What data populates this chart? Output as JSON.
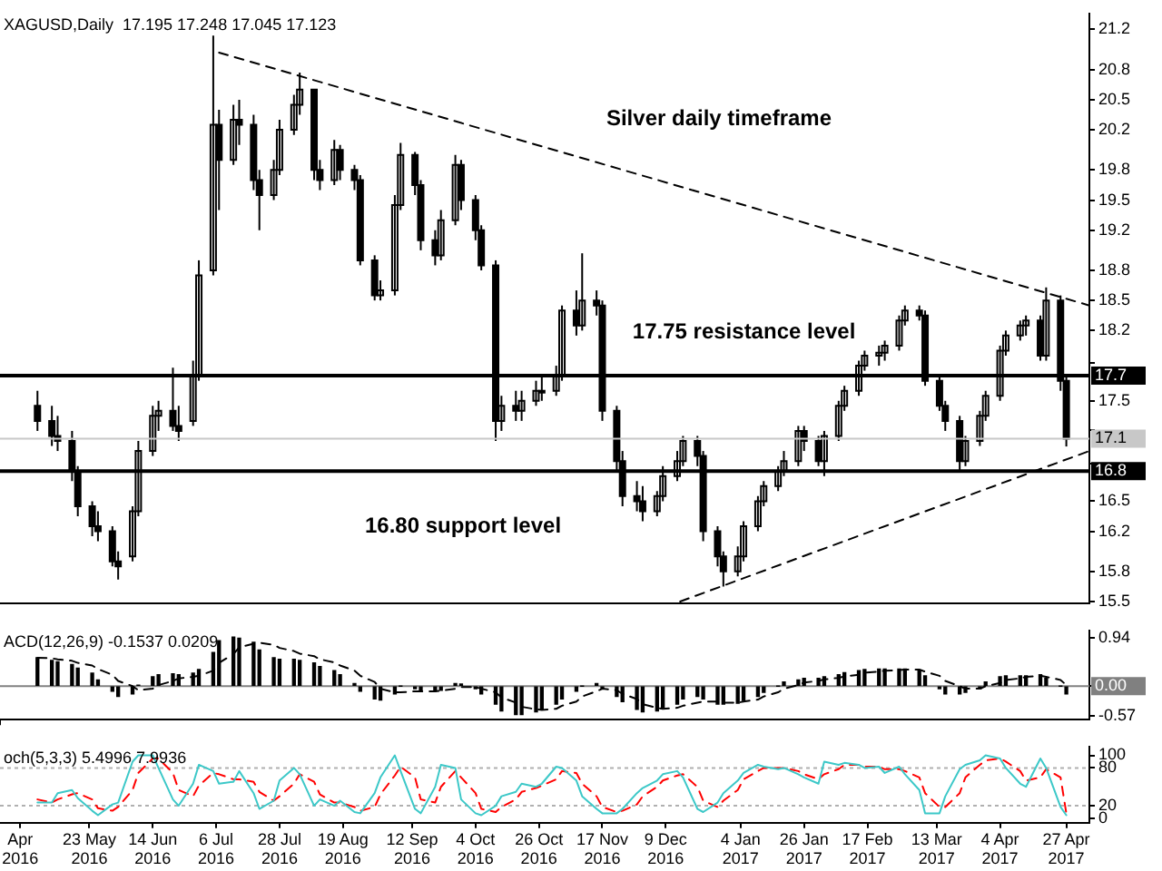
{
  "chart_data": [
    {
      "type": "candlestick",
      "color": "#000000",
      "x": [
        "2016-05-05",
        "2016-05-10",
        "2016-05-12",
        "2016-05-17",
        "2016-05-19",
        "2016-05-24",
        "2016-05-26",
        "2016-05-31",
        "2016-06-02",
        "2016-06-07",
        "2016-06-09",
        "2016-06-14",
        "2016-06-16",
        "2016-06-21",
        "2016-06-23",
        "2016-06-28",
        "2016-06-30",
        "2016-07-05",
        "2016-07-07",
        "2016-07-12",
        "2016-07-14",
        "2016-07-19",
        "2016-07-21",
        "2016-07-26",
        "2016-07-28",
        "2016-08-02",
        "2016-08-04",
        "2016-08-09",
        "2016-08-11",
        "2016-08-16",
        "2016-08-18",
        "2016-08-23",
        "2016-08-25",
        "2016-08-30",
        "2016-09-01",
        "2016-09-06",
        "2016-09-08",
        "2016-09-13",
        "2016-09-15",
        "2016-09-20",
        "2016-09-22",
        "2016-09-27",
        "2016-09-29",
        "2016-10-04",
        "2016-10-06",
        "2016-10-11",
        "2016-10-13",
        "2016-10-18",
        "2016-10-20",
        "2016-10-25",
        "2016-10-27",
        "2016-11-01",
        "2016-11-03",
        "2016-11-08",
        "2016-11-10",
        "2016-11-15",
        "2016-11-17",
        "2016-11-22",
        "2016-11-24",
        "2016-11-29",
        "2016-12-01",
        "2016-12-06",
        "2016-12-08",
        "2016-12-13",
        "2016-12-15",
        "2016-12-20",
        "2016-12-22",
        "2016-12-27",
        "2016-12-29",
        "2017-01-03",
        "2017-01-05",
        "2017-01-10",
        "2017-01-12",
        "2017-01-17",
        "2017-01-19",
        "2017-01-24",
        "2017-01-26",
        "2017-01-31",
        "2017-02-02",
        "2017-02-07",
        "2017-02-09",
        "2017-02-14",
        "2017-02-16",
        "2017-02-21",
        "2017-02-23",
        "2017-02-28",
        "2017-03-02",
        "2017-03-07",
        "2017-03-09",
        "2017-03-14",
        "2017-03-16",
        "2017-03-21",
        "2017-03-23",
        "2017-03-28",
        "2017-03-30",
        "2017-04-04",
        "2017-04-06",
        "2017-04-11",
        "2017-04-13",
        "2017-04-18",
        "2017-04-20",
        "2017-04-25",
        "2017-04-27"
      ],
      "ohlc": [
        [
          17.45,
          17.6,
          17.2,
          17.3
        ],
        [
          17.3,
          17.45,
          17.05,
          17.15
        ],
        [
          17.15,
          17.35,
          17.0,
          17.1
        ],
        [
          17.1,
          17.2,
          16.7,
          16.8
        ],
        [
          16.8,
          16.85,
          16.35,
          16.45
        ],
        [
          16.45,
          16.5,
          16.15,
          16.25
        ],
        [
          16.25,
          16.4,
          16.1,
          16.2
        ],
        [
          16.2,
          16.25,
          15.85,
          15.9
        ],
        [
          15.9,
          16.0,
          15.72,
          15.85
        ],
        [
          15.95,
          16.45,
          15.9,
          16.4
        ],
        [
          16.4,
          17.1,
          16.35,
          17.0
        ],
        [
          17.0,
          17.45,
          16.95,
          17.35
        ],
        [
          17.35,
          17.5,
          17.2,
          17.4
        ],
        [
          17.4,
          17.83,
          17.2,
          17.25
        ],
        [
          17.25,
          17.45,
          17.1,
          17.2
        ],
        [
          17.3,
          17.9,
          17.25,
          17.75
        ],
        [
          17.75,
          18.9,
          17.7,
          18.75
        ],
        [
          18.8,
          21.14,
          18.75,
          20.25
        ],
        [
          20.25,
          20.4,
          19.4,
          19.9
        ],
        [
          19.9,
          20.45,
          19.85,
          20.3
        ],
        [
          20.3,
          20.5,
          20.05,
          20.25
        ],
        [
          20.25,
          20.35,
          19.6,
          19.7
        ],
        [
          19.7,
          19.8,
          19.2,
          19.55
        ],
        [
          19.55,
          19.9,
          19.5,
          19.8
        ],
        [
          19.8,
          20.3,
          19.75,
          20.2
        ],
        [
          20.2,
          20.55,
          20.15,
          20.45
        ],
        [
          20.45,
          20.77,
          20.35,
          20.6
        ],
        [
          20.6,
          20.6,
          19.7,
          19.8
        ],
        [
          19.8,
          19.9,
          19.6,
          19.7
        ],
        [
          19.7,
          20.1,
          19.65,
          20.0
        ],
        [
          20.0,
          20.05,
          19.7,
          19.8
        ],
        [
          19.8,
          19.85,
          19.6,
          19.7
        ],
        [
          19.7,
          19.75,
          18.85,
          18.9
        ],
        [
          18.9,
          18.95,
          18.5,
          18.55
        ],
        [
          18.55,
          18.7,
          18.5,
          18.6
        ],
        [
          18.6,
          19.55,
          18.55,
          19.45
        ],
        [
          19.45,
          20.07,
          19.4,
          19.95
        ],
        [
          19.95,
          19.98,
          19.55,
          19.65
        ],
        [
          19.65,
          19.7,
          19.0,
          19.1
        ],
        [
          19.1,
          19.2,
          18.85,
          18.95
        ],
        [
          18.95,
          19.4,
          18.9,
          19.3
        ],
        [
          19.3,
          19.95,
          19.25,
          19.85
        ],
        [
          19.85,
          19.9,
          19.4,
          19.5
        ],
        [
          19.5,
          19.55,
          19.1,
          19.2
        ],
        [
          19.2,
          19.25,
          18.8,
          18.85
        ],
        [
          18.85,
          18.9,
          17.1,
          17.3
        ],
        [
          17.3,
          17.55,
          17.2,
          17.45
        ],
        [
          17.45,
          17.6,
          17.3,
          17.4
        ],
        [
          17.4,
          17.6,
          17.3,
          17.5
        ],
        [
          17.5,
          17.7,
          17.45,
          17.6
        ],
        [
          17.6,
          17.75,
          17.5,
          17.6
        ],
        [
          17.6,
          17.85,
          17.55,
          17.75
        ],
        [
          17.75,
          18.45,
          17.7,
          18.4
        ],
        [
          18.4,
          18.6,
          18.15,
          18.25
        ],
        [
          18.25,
          18.97,
          18.2,
          18.5
        ],
        [
          18.5,
          18.6,
          18.35,
          18.45
        ],
        [
          18.45,
          18.5,
          17.3,
          17.4
        ],
        [
          17.4,
          17.45,
          16.8,
          16.9
        ],
        [
          16.9,
          17.0,
          16.45,
          16.55
        ],
        [
          16.55,
          16.7,
          16.4,
          16.5
        ],
        [
          16.5,
          16.65,
          16.3,
          16.4
        ],
        [
          16.4,
          16.6,
          16.35,
          16.55
        ],
        [
          16.55,
          16.85,
          16.5,
          16.75
        ],
        [
          16.75,
          17.0,
          16.7,
          16.9
        ],
        [
          16.9,
          17.15,
          16.85,
          17.1
        ],
        [
          17.1,
          17.15,
          16.85,
          16.95
        ],
        [
          16.95,
          17.0,
          16.1,
          16.2
        ],
        [
          16.2,
          16.25,
          15.85,
          15.95
        ],
        [
          15.95,
          16.0,
          15.65,
          15.8
        ],
        [
          15.8,
          16.05,
          15.75,
          15.95
        ],
        [
          15.95,
          16.3,
          15.9,
          16.25
        ],
        [
          16.25,
          16.55,
          16.2,
          16.5
        ],
        [
          16.5,
          16.7,
          16.45,
          16.65
        ],
        [
          16.65,
          16.85,
          16.6,
          16.8
        ],
        [
          16.8,
          17.0,
          16.75,
          16.9
        ],
        [
          16.9,
          17.25,
          16.85,
          17.2
        ],
        [
          17.2,
          17.25,
          17.0,
          17.1
        ],
        [
          17.1,
          17.15,
          16.85,
          16.9
        ],
        [
          16.9,
          17.2,
          16.75,
          17.15
        ],
        [
          17.15,
          17.5,
          17.1,
          17.45
        ],
        [
          17.45,
          17.65,
          17.4,
          17.6
        ],
        [
          17.6,
          17.9,
          17.55,
          17.85
        ],
        [
          17.85,
          18.0,
          17.8,
          17.95
        ],
        [
          17.95,
          18.05,
          17.85,
          17.98
        ],
        [
          17.98,
          18.1,
          17.9,
          18.05
        ],
        [
          18.05,
          18.35,
          18.0,
          18.3
        ],
        [
          18.3,
          18.45,
          18.25,
          18.4
        ],
        [
          18.4,
          18.45,
          18.3,
          18.35
        ],
        [
          18.35,
          18.4,
          17.65,
          17.7
        ],
        [
          17.7,
          17.75,
          17.4,
          17.45
        ],
        [
          17.45,
          17.5,
          17.2,
          17.3
        ],
        [
          17.3,
          17.35,
          16.8,
          16.9
        ],
        [
          16.9,
          17.15,
          16.85,
          17.1
        ],
        [
          17.1,
          17.4,
          17.05,
          17.35
        ],
        [
          17.35,
          17.6,
          17.3,
          17.55
        ],
        [
          17.55,
          18.05,
          17.5,
          18.0
        ],
        [
          18.0,
          18.2,
          17.95,
          18.15
        ],
        [
          18.15,
          18.3,
          18.1,
          18.25
        ],
        [
          18.25,
          18.35,
          18.15,
          18.3
        ],
        [
          18.3,
          18.35,
          17.9,
          17.95
        ],
        [
          17.95,
          18.63,
          17.9,
          18.5
        ],
        [
          18.5,
          18.55,
          17.6,
          17.7
        ],
        [
          17.7,
          17.75,
          17.045,
          17.123
        ]
      ],
      "series": [
        {
          "type": "line",
          "color": "#000000",
          "line_style": "dashed",
          "x": [
            "2016-07-07",
            "2017-05-05"
          ],
          "values": [
            20.97,
            18.45
          ]
        },
        {
          "type": "line",
          "color": "#000000",
          "line_style": "dashed",
          "x": [
            "2016-12-14",
            "2017-05-05"
          ],
          "values": [
            15.5,
            17.0
          ]
        }
      ],
      "xlim": [
        "2016-04-22",
        "2017-05-05"
      ],
      "ylim": [
        15.48,
        21.36
      ],
      "yticks": [
        15.5,
        15.8,
        16.2,
        16.5,
        {
          "value": 16.87,
          "label": null
        },
        {
          "value": 17.205,
          "label": null
        },
        17.5,
        {
          "value": 17.875,
          "label": null
        },
        18.2,
        18.5,
        18.8,
        19.2,
        19.5,
        19.8,
        20.2,
        20.5,
        20.8,
        21.2
      ],
      "ref_lines": [
        {
          "axis": "y",
          "value": 17.75,
          "label": "17.7",
          "color": "#000000"
        },
        {
          "axis": "y",
          "value": 16.8,
          "label": "16.8",
          "color": "#000000"
        },
        {
          "axis": "y",
          "value": 17.123,
          "label": "17.1",
          "color": "#c8c8c8"
        }
      ],
      "annotations": [
        "XAGUSD,Daily  17.195 17.248 17.045 17.123",
        "Silver daily timeframe",
        "17.75 resistance level",
        "16.80 support level"
      ],
      "tick_labels": "y",
      "legend": false
    },
    {
      "type": "bar",
      "x": [
        "2016-05-05",
        "2016-05-10",
        "2016-05-12",
        "2016-05-17",
        "2016-05-19",
        "2016-05-24",
        "2016-05-26",
        "2016-05-31",
        "2016-06-02",
        "2016-06-07",
        "2016-06-09",
        "2016-06-14",
        "2016-06-16",
        "2016-06-21",
        "2016-06-23",
        "2016-06-28",
        "2016-06-30",
        "2016-07-05",
        "2016-07-07",
        "2016-07-12",
        "2016-07-14",
        "2016-07-19",
        "2016-07-21",
        "2016-07-26",
        "2016-07-28",
        "2016-08-02",
        "2016-08-04",
        "2016-08-09",
        "2016-08-11",
        "2016-08-16",
        "2016-08-18",
        "2016-08-23",
        "2016-08-25",
        "2016-08-30",
        "2016-09-01",
        "2016-09-06",
        "2016-09-08",
        "2016-09-13",
        "2016-09-15",
        "2016-09-20",
        "2016-09-22",
        "2016-09-27",
        "2016-09-29",
        "2016-10-04",
        "2016-10-06",
        "2016-10-11",
        "2016-10-13",
        "2016-10-18",
        "2016-10-20",
        "2016-10-25",
        "2016-10-27",
        "2016-11-01",
        "2016-11-03",
        "2016-11-08",
        "2016-11-10",
        "2016-11-15",
        "2016-11-17",
        "2016-11-22",
        "2016-11-24",
        "2016-11-29",
        "2016-12-01",
        "2016-12-06",
        "2016-12-08",
        "2016-12-13",
        "2016-12-15",
        "2016-12-20",
        "2016-12-22",
        "2016-12-27",
        "2016-12-29",
        "2017-01-03",
        "2017-01-05",
        "2017-01-10",
        "2017-01-12",
        "2017-01-17",
        "2017-01-19",
        "2017-01-24",
        "2017-01-26",
        "2017-01-31",
        "2017-02-02",
        "2017-02-07",
        "2017-02-09",
        "2017-02-14",
        "2017-02-16",
        "2017-02-21",
        "2017-02-23",
        "2017-02-28",
        "2017-03-02",
        "2017-03-07",
        "2017-03-09",
        "2017-03-14",
        "2017-03-16",
        "2017-03-21",
        "2017-03-23",
        "2017-03-28",
        "2017-03-30",
        "2017-04-04",
        "2017-04-06",
        "2017-04-11",
        "2017-04-13",
        "2017-04-18",
        "2017-04-20",
        "2017-04-25",
        "2017-04-27"
      ],
      "series": [
        {
          "type": "bar",
          "color": "#000000",
          "values": [
            0.55,
            0.5,
            0.47,
            0.42,
            0.35,
            0.25,
            0.12,
            -0.1,
            -0.2,
            -0.15,
            0.02,
            0.18,
            0.22,
            0.24,
            0.22,
            0.25,
            0.32,
            0.65,
            0.88,
            0.95,
            0.93,
            0.85,
            0.7,
            0.55,
            0.52,
            0.52,
            0.5,
            0.45,
            0.38,
            0.3,
            0.22,
            0.05,
            -0.1,
            -0.25,
            -0.27,
            -0.15,
            0.0,
            -0.05,
            -0.1,
            -0.1,
            -0.08,
            0.05,
            0.04,
            -0.05,
            -0.15,
            -0.35,
            -0.48,
            -0.55,
            -0.55,
            -0.5,
            -0.45,
            -0.35,
            -0.25,
            -0.1,
            0.0,
            0.05,
            -0.05,
            -0.2,
            -0.3,
            -0.45,
            -0.5,
            -0.48,
            -0.42,
            -0.35,
            -0.25,
            -0.2,
            -0.25,
            -0.35,
            -0.35,
            -0.33,
            -0.28,
            -0.2,
            -0.12,
            0.0,
            0.08,
            0.12,
            0.15,
            0.15,
            0.18,
            0.22,
            0.26,
            0.3,
            0.32,
            0.33,
            0.33,
            0.33,
            0.33,
            0.3,
            0.2,
            -0.05,
            -0.15,
            -0.15,
            -0.12,
            -0.05,
            0.08,
            0.18,
            0.2,
            0.2,
            0.2,
            0.22,
            0.15,
            0.0,
            -0.15
          ]
        },
        {
          "type": "line",
          "color": "#000000",
          "line_style": "dashed",
          "values": [
            0.55,
            0.54,
            0.52,
            0.49,
            0.45,
            0.4,
            0.33,
            0.22,
            0.1,
            0.0,
            -0.08,
            -0.05,
            0.02,
            0.1,
            0.15,
            0.18,
            0.2,
            0.3,
            0.45,
            0.62,
            0.75,
            0.82,
            0.84,
            0.8,
            0.74,
            0.68,
            0.63,
            0.58,
            0.52,
            0.46,
            0.4,
            0.3,
            0.2,
            0.08,
            -0.05,
            -0.12,
            -0.12,
            -0.1,
            -0.1,
            -0.1,
            -0.09,
            -0.05,
            -0.02,
            -0.02,
            -0.05,
            -0.12,
            -0.22,
            -0.32,
            -0.4,
            -0.45,
            -0.46,
            -0.44,
            -0.38,
            -0.3,
            -0.2,
            -0.1,
            -0.05,
            -0.08,
            -0.15,
            -0.25,
            -0.35,
            -0.42,
            -0.44,
            -0.42,
            -0.38,
            -0.32,
            -0.3,
            -0.3,
            -0.32,
            -0.32,
            -0.3,
            -0.26,
            -0.2,
            -0.12,
            -0.05,
            0.02,
            0.07,
            0.1,
            0.13,
            0.16,
            0.19,
            0.22,
            0.26,
            0.28,
            0.3,
            0.31,
            0.32,
            0.32,
            0.28,
            0.2,
            0.1,
            0.0,
            -0.05,
            -0.05,
            0.0,
            0.06,
            0.12,
            0.15,
            0.18,
            0.2,
            0.18,
            0.12,
            0.02
          ]
        }
      ],
      "xlim": [
        "2016-04-22",
        "2017-05-05"
      ],
      "ylim": [
        -0.65,
        1.08
      ],
      "yticks": [
        -0.57,
        {
          "value": 0,
          "label": null
        },
        0.94
      ],
      "ref_lines": [
        {
          "axis": "y",
          "value": 0,
          "label": "0.00",
          "color": "#808080"
        }
      ],
      "annotations": [
        "ACD(12,26,9) -0.1537 0.0209"
      ],
      "tick_labels": "y",
      "legend": false
    },
    {
      "type": "line",
      "x": [
        "2016-05-05",
        "2016-05-10",
        "2016-05-12",
        "2016-05-17",
        "2016-05-19",
        "2016-05-24",
        "2016-05-26",
        "2016-05-31",
        "2016-06-02",
        "2016-06-07",
        "2016-06-09",
        "2016-06-14",
        "2016-06-16",
        "2016-06-21",
        "2016-06-23",
        "2016-06-28",
        "2016-06-30",
        "2016-07-05",
        "2016-07-07",
        "2016-07-12",
        "2016-07-14",
        "2016-07-19",
        "2016-07-21",
        "2016-07-26",
        "2016-07-28",
        "2016-08-02",
        "2016-08-04",
        "2016-08-09",
        "2016-08-11",
        "2016-08-16",
        "2016-08-18",
        "2016-08-23",
        "2016-08-25",
        "2016-08-30",
        "2016-09-01",
        "2016-09-06",
        "2016-09-08",
        "2016-09-13",
        "2016-09-15",
        "2016-09-20",
        "2016-09-22",
        "2016-09-27",
        "2016-09-29",
        "2016-10-04",
        "2016-10-06",
        "2016-10-11",
        "2016-10-13",
        "2016-10-18",
        "2016-10-20",
        "2016-10-25",
        "2016-10-27",
        "2016-11-01",
        "2016-11-03",
        "2016-11-08",
        "2016-11-10",
        "2016-11-15",
        "2016-11-17",
        "2016-11-22",
        "2016-11-24",
        "2016-11-29",
        "2016-12-01",
        "2016-12-06",
        "2016-12-08",
        "2016-12-13",
        "2016-12-15",
        "2016-12-20",
        "2016-12-22",
        "2016-12-27",
        "2016-12-29",
        "2017-01-03",
        "2017-01-05",
        "2017-01-10",
        "2017-01-12",
        "2017-01-17",
        "2017-01-19",
        "2017-01-24",
        "2017-01-26",
        "2017-01-31",
        "2017-02-02",
        "2017-02-07",
        "2017-02-09",
        "2017-02-14",
        "2017-02-16",
        "2017-02-21",
        "2017-02-23",
        "2017-02-28",
        "2017-03-02",
        "2017-03-07",
        "2017-03-09",
        "2017-03-14",
        "2017-03-16",
        "2017-03-21",
        "2017-03-23",
        "2017-03-28",
        "2017-03-30",
        "2017-04-04",
        "2017-04-06",
        "2017-04-11",
        "2017-04-13",
        "2017-04-18",
        "2017-04-20",
        "2017-04-25",
        "2017-04-27"
      ],
      "series": [
        {
          "color": "#3cc8c8",
          "line_style": "solid",
          "values": [
            25,
            25,
            40,
            45,
            32,
            12,
            5,
            22,
            25,
            90,
            100,
            100,
            80,
            30,
            20,
            55,
            85,
            75,
            55,
            58,
            75,
            40,
            15,
            28,
            60,
            80,
            70,
            20,
            30,
            20,
            28,
            10,
            8,
            40,
            65,
            100,
            75,
            15,
            8,
            50,
            85,
            80,
            30,
            8,
            5,
            20,
            35,
            42,
            55,
            50,
            55,
            82,
            80,
            60,
            35,
            15,
            8,
            8,
            15,
            40,
            48,
            60,
            70,
            75,
            65,
            15,
            10,
            25,
            40,
            60,
            72,
            85,
            82,
            78,
            80,
            70,
            65,
            55,
            90,
            85,
            88,
            85,
            80,
            82,
            72,
            82,
            70,
            45,
            8,
            8,
            35,
            78,
            85,
            92,
            100,
            95,
            80,
            55,
            50,
            95,
            80,
            18,
            5
          ]
        },
        {
          "color": "#ff0000",
          "line_style": "dashed",
          "values": [
            30,
            25,
            30,
            38,
            40,
            30,
            16,
            12,
            18,
            45,
            72,
            95,
            95,
            72,
            45,
            35,
            52,
            72,
            70,
            62,
            62,
            58,
            42,
            28,
            35,
            55,
            70,
            58,
            38,
            25,
            25,
            18,
            12,
            18,
            38,
            68,
            82,
            65,
            30,
            25,
            50,
            75,
            65,
            40,
            15,
            10,
            18,
            30,
            42,
            48,
            52,
            62,
            75,
            72,
            55,
            35,
            18,
            10,
            12,
            22,
            35,
            50,
            60,
            68,
            70,
            50,
            28,
            18,
            28,
            45,
            62,
            75,
            80,
            80,
            80,
            75,
            70,
            62,
            70,
            78,
            85,
            85,
            82,
            82,
            78,
            78,
            75,
            65,
            40,
            18,
            18,
            40,
            65,
            85,
            92,
            95,
            90,
            75,
            60,
            65,
            78,
            65,
            8
          ]
        }
      ],
      "xlim": [
        "2016-04-22",
        "2017-05-05"
      ],
      "xticks": [
        {
          "value": "2016-04-29",
          "label": "Apr 2016"
        },
        {
          "value": "2016-05-23",
          "label": "23 May 2016"
        },
        {
          "value": "2016-06-14",
          "label": "14 Jun 2016"
        },
        {
          "value": "2016-07-06",
          "label": "6 Jul 2016"
        },
        {
          "value": "2016-07-28",
          "label": "28 Jul 2016"
        },
        {
          "value": "2016-08-19",
          "label": "19 Aug 2016"
        },
        {
          "value": "2016-09-12",
          "label": "12 Sep 2016"
        },
        {
          "value": "2016-10-04",
          "label": "4 Oct 2016"
        },
        {
          "value": "2016-10-26",
          "label": "26 Oct 2016"
        },
        {
          "value": "2016-11-17",
          "label": "17 Nov 2016"
        },
        {
          "value": "2016-12-09",
          "label": "9 Dec 2016"
        },
        {
          "value": "2017-01-04",
          "label": "4 Jan 2017"
        },
        {
          "value": "2017-01-26",
          "label": "26 Jan 2017"
        },
        {
          "value": "2017-02-17",
          "label": "17 Feb 2017"
        },
        {
          "value": "2017-03-13",
          "label": "13 Mar 2017"
        },
        {
          "value": "2017-04-04",
          "label": "4 Apr 2017"
        },
        {
          "value": "2017-04-27",
          "label": "27 Apr 2017"
        }
      ],
      "ylim": [
        -7,
        114
      ],
      "yticks": [
        0,
        20,
        80,
        100
      ],
      "ref_lines": [
        {
          "axis": "y",
          "value": 80,
          "color": "#b0b0b0",
          "line_style": "dotted"
        },
        {
          "axis": "y",
          "value": 20,
          "color": "#b0b0b0",
          "line_style": "dotted"
        }
      ],
      "annotations": [
        "och(5,3,3) 5.4996 7.9936"
      ],
      "legend": false
    }
  ]
}
